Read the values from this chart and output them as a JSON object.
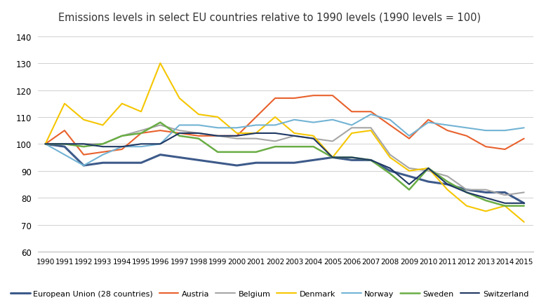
{
  "title": "Emissions levels in select EU countries relative to 1990 levels (1990 levels = 100)",
  "years": [
    1990,
    1991,
    1992,
    1993,
    1994,
    1995,
    1996,
    1997,
    1998,
    1999,
    2000,
    2001,
    2002,
    2003,
    2004,
    2005,
    2006,
    2007,
    2008,
    2009,
    2010,
    2011,
    2012,
    2013,
    2014,
    2015
  ],
  "series": {
    "European Union (28 countries)": {
      "color": "#3d5a8a",
      "linewidth": 2.2,
      "values": [
        100,
        99,
        92,
        93,
        93,
        93,
        96,
        95,
        94,
        93,
        92,
        93,
        93,
        93,
        94,
        95,
        94,
        94,
        90,
        88,
        86,
        85,
        83,
        82,
        82,
        78
      ]
    },
    "Austria": {
      "color": "#e8612c",
      "linewidth": 1.5,
      "values": [
        100,
        105,
        96,
        97,
        98,
        104,
        105,
        104,
        103,
        103,
        103,
        110,
        117,
        117,
        118,
        118,
        112,
        112,
        107,
        102,
        109,
        105,
        103,
        99,
        98,
        102
      ]
    },
    "Belgium": {
      "color": "#a5a5a5",
      "linewidth": 1.5,
      "values": [
        100,
        100,
        100,
        100,
        103,
        105,
        107,
        105,
        104,
        103,
        102,
        102,
        101,
        103,
        102,
        101,
        106,
        106,
        96,
        91,
        90,
        88,
        83,
        83,
        81,
        82
      ]
    },
    "Denmark": {
      "color": "#f5c600",
      "linewidth": 1.5,
      "values": [
        100,
        115,
        109,
        107,
        115,
        112,
        130,
        117,
        111,
        110,
        104,
        104,
        110,
        104,
        103,
        95,
        104,
        105,
        95,
        90,
        91,
        83,
        77,
        75,
        77,
        71
      ]
    },
    "Norway": {
      "color": "#72b3d4",
      "linewidth": 1.5,
      "values": [
        100,
        96,
        92,
        96,
        99,
        99,
        100,
        107,
        107,
        106,
        106,
        107,
        107,
        109,
        108,
        109,
        107,
        111,
        109,
        103,
        108,
        107,
        106,
        105,
        105,
        106
      ]
    },
    "Sweden": {
      "color": "#6aad45",
      "linewidth": 1.8,
      "values": [
        100,
        100,
        99,
        100,
        103,
        104,
        108,
        103,
        102,
        97,
        97,
        97,
        99,
        99,
        99,
        95,
        95,
        94,
        89,
        83,
        91,
        86,
        82,
        79,
        77,
        77
      ]
    },
    "Switzerland": {
      "color": "#1f3864",
      "linewidth": 1.5,
      "values": [
        100,
        100,
        100,
        99,
        99,
        100,
        100,
        104,
        104,
        103,
        103,
        104,
        104,
        103,
        102,
        95,
        95,
        94,
        91,
        85,
        91,
        85,
        82,
        80,
        78,
        78
      ]
    }
  },
  "ylim": [
    60,
    140
  ],
  "yticks": [
    60,
    70,
    80,
    90,
    100,
    110,
    120,
    130,
    140
  ],
  "background_color": "#ffffff",
  "grid_color": "#d0d0d0"
}
